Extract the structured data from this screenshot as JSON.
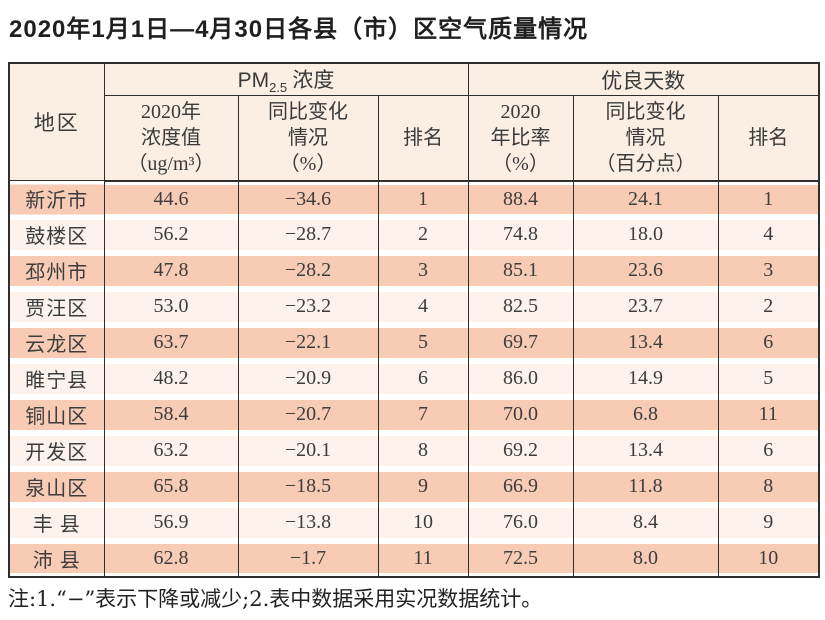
{
  "title": "2020年1月1日—4月30日各县（市）区空气质量情况",
  "note": "注:1.“−”表示下降或减少;2.表中数据采用实况数据统计。",
  "colors": {
    "border": "#2e2e2e",
    "row_salmon": "#f7cbb4",
    "row_light": "#fdf3ec",
    "header_bg": "#fbeee2"
  },
  "table": {
    "region_header": "地区",
    "pm_group": {
      "prefix": "PM",
      "sub": "2.5",
      "suffix": " 浓度"
    },
    "days_group_label": "优良天数",
    "sub_headers": [
      "2020年\n浓度值\n（ug/m³）",
      "同比变化\n情况\n（%）",
      "排名",
      "2020\n年比率\n（%）",
      "同比变化\n情况\n（百分点）",
      "排名"
    ],
    "rows": [
      [
        "新沂市",
        "44.6",
        "−34.6",
        "1",
        "88.4",
        "24.1",
        "1"
      ],
      [
        "鼓楼区",
        "56.2",
        "−28.7",
        "2",
        "74.8",
        "18.0",
        "4"
      ],
      [
        "邳州市",
        "47.8",
        "−28.2",
        "3",
        "85.1",
        "23.6",
        "3"
      ],
      [
        "贾汪区",
        "53.0",
        "−23.2",
        "4",
        "82.5",
        "23.7",
        "2"
      ],
      [
        "云龙区",
        "63.7",
        "−22.1",
        "5",
        "69.7",
        "13.4",
        "6"
      ],
      [
        "睢宁县",
        "48.2",
        "−20.9",
        "6",
        "86.0",
        "14.9",
        "5"
      ],
      [
        "铜山区",
        "58.4",
        "−20.7",
        "7",
        "70.0",
        "6.8",
        "11"
      ],
      [
        "开发区",
        "63.2",
        "−20.1",
        "8",
        "69.2",
        "13.4",
        "6"
      ],
      [
        "泉山区",
        "65.8",
        "−18.5",
        "9",
        "66.9",
        "11.8",
        "8"
      ],
      [
        "丰 县",
        "56.9",
        "−13.8",
        "10",
        "76.0",
        "8.4",
        "9"
      ],
      [
        "沛 县",
        "62.8",
        "−1.7",
        "11",
        "72.5",
        "8.0",
        "10"
      ]
    ]
  }
}
